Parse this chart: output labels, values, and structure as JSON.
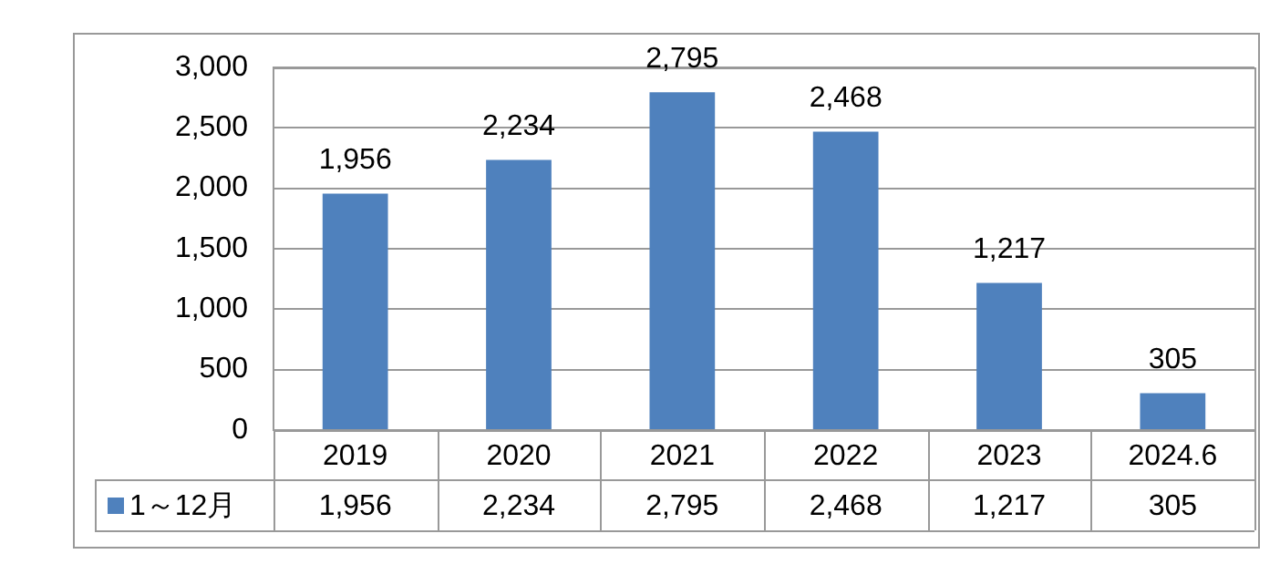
{
  "chart_data": {
    "type": "bar",
    "categories": [
      "2019",
      "2020",
      "2021",
      "2022",
      "2023",
      "2024.6"
    ],
    "series": [
      {
        "name": "1～12月",
        "color": "#4f81bd",
        "values": [
          1956,
          2234,
          2795,
          2468,
          1217,
          305
        ],
        "value_labels": [
          "1,956",
          "2,234",
          "2,795",
          "2,468",
          "1,217",
          "305"
        ]
      }
    ],
    "ylim": [
      0,
      3000
    ],
    "yticks": [
      {
        "value": 0,
        "label": "0"
      },
      {
        "value": 500,
        "label": "500"
      },
      {
        "value": 1000,
        "label": "1,000"
      },
      {
        "value": 1500,
        "label": "1,500"
      },
      {
        "value": 2000,
        "label": "2,000"
      },
      {
        "value": 2500,
        "label": "2,500"
      },
      {
        "value": 3000,
        "label": "3,000"
      }
    ],
    "grid": "y",
    "legend": "bottom left"
  }
}
